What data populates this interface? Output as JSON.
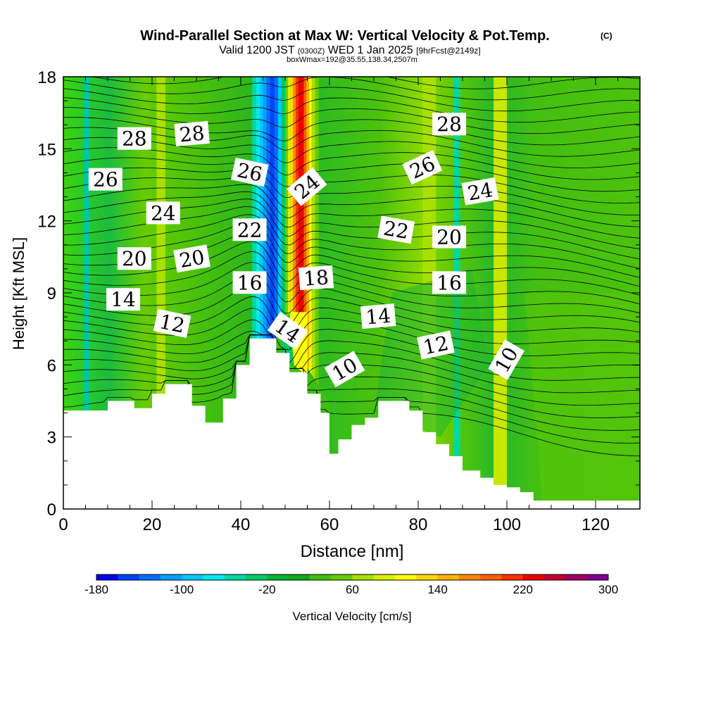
{
  "header": {
    "title": "Wind-Parallel Section at Max W: Vertical Velocity & Pot.Temp.",
    "title_mark": "(C)",
    "valid_prefix": "Valid 1200 JST",
    "valid_small": "(0300Z)",
    "valid_date": "WED 1 Jan 2025",
    "valid_suffix": "[9hrFcst@2149z]",
    "subline": "boxWmax=192@35.55,138.34,2507m"
  },
  "chart_data": {
    "type": "heatmap",
    "xlabel": "Distance [nm]",
    "ylabel": "Height [Kft MSL]",
    "xlim": [
      0,
      130
    ],
    "ylim": [
      0,
      18
    ],
    "x_ticks": [
      "0",
      "20",
      "40",
      "60",
      "80",
      "100",
      "120"
    ],
    "y_ticks": [
      "0",
      "3",
      "6",
      "9",
      "12",
      "15",
      "18"
    ],
    "colorbar": {
      "label": "Vertical Velocity [cm/s]",
      "tick_labels": [
        "-180",
        "-100",
        "-20",
        "60",
        "140",
        "220",
        "300"
      ],
      "range": [
        -180,
        300
      ],
      "step": 20,
      "colors": [
        "#0000f0",
        "#0040ff",
        "#0070ff",
        "#00a0ff",
        "#00c8ff",
        "#00e8f0",
        "#00d8a0",
        "#00c864",
        "#00b432",
        "#10aa18",
        "#40be10",
        "#66cc00",
        "#a8e000",
        "#d8f000",
        "#ffff00",
        "#ffd800",
        "#ffb000",
        "#ff8800",
        "#ff6000",
        "#ff3000",
        "#f00000",
        "#c00030",
        "#a00060",
        "#800090"
      ]
    },
    "terrain_profile_kft": [
      [
        0,
        4.1
      ],
      [
        10,
        4.1
      ],
      [
        10,
        4.5
      ],
      [
        16,
        4.5
      ],
      [
        16,
        4.2
      ],
      [
        20,
        4.2
      ],
      [
        20,
        4.8
      ],
      [
        23,
        4.8
      ],
      [
        23,
        5.2
      ],
      [
        29,
        5.2
      ],
      [
        29,
        4.3
      ],
      [
        32,
        4.3
      ],
      [
        32,
        3.6
      ],
      [
        36,
        3.6
      ],
      [
        36,
        4.6
      ],
      [
        39,
        4.6
      ],
      [
        39,
        6.0
      ],
      [
        42,
        6.0
      ],
      [
        42,
        7.1
      ],
      [
        48,
        7.1
      ],
      [
        48,
        6.5
      ],
      [
        51,
        6.5
      ],
      [
        51,
        5.7
      ],
      [
        55,
        5.7
      ],
      [
        55,
        4.8
      ],
      [
        58,
        4.8
      ],
      [
        58,
        4.0
      ],
      [
        60,
        4.0
      ],
      [
        60,
        2.3
      ],
      [
        62,
        2.3
      ],
      [
        62,
        2.9
      ],
      [
        65,
        2.9
      ],
      [
        65,
        3.5
      ],
      [
        68,
        3.5
      ],
      [
        68,
        3.8
      ],
      [
        71,
        3.8
      ],
      [
        71,
        4.5
      ],
      [
        78,
        4.5
      ],
      [
        78,
        4.1
      ],
      [
        81,
        4.1
      ],
      [
        81,
        3.2
      ],
      [
        84,
        3.2
      ],
      [
        84,
        2.7
      ],
      [
        87,
        2.7
      ],
      [
        87,
        2.2
      ],
      [
        90,
        2.2
      ],
      [
        90,
        1.6
      ],
      [
        94,
        1.6
      ],
      [
        94,
        1.3
      ],
      [
        97,
        1.3
      ],
      [
        97,
        1.0
      ],
      [
        100,
        1.0
      ],
      [
        100,
        0.9
      ],
      [
        103,
        0.9
      ],
      [
        103,
        0.7
      ],
      [
        106,
        0.7
      ],
      [
        106,
        0.35
      ],
      [
        130,
        0.35
      ]
    ],
    "updraft_max_cm_s": 192,
    "isentrope_labels": [
      {
        "text": "28",
        "x": 16,
        "y": 15.4,
        "angle": 0
      },
      {
        "text": "28",
        "x": 29,
        "y": 15.6,
        "angle": -5
      },
      {
        "text": "26",
        "x": 9.5,
        "y": 13.7,
        "angle": 0
      },
      {
        "text": "26",
        "x": 42,
        "y": 14.0,
        "angle": 12
      },
      {
        "text": "24",
        "x": 22.5,
        "y": 12.3,
        "angle": 0
      },
      {
        "text": "24",
        "x": 55,
        "y": 13.4,
        "angle": -40
      },
      {
        "text": "22",
        "x": 42,
        "y": 11.6,
        "angle": 0
      },
      {
        "text": "20",
        "x": 16,
        "y": 10.4,
        "angle": 0
      },
      {
        "text": "20",
        "x": 29,
        "y": 10.4,
        "angle": -10
      },
      {
        "text": "16",
        "x": 42,
        "y": 9.4,
        "angle": 0
      },
      {
        "text": "18",
        "x": 57,
        "y": 9.6,
        "angle": -4
      },
      {
        "text": "14",
        "x": 13.5,
        "y": 8.7,
        "angle": 0
      },
      {
        "text": "12",
        "x": 24.5,
        "y": 7.7,
        "angle": 12
      },
      {
        "text": "14",
        "x": 50.5,
        "y": 7.4,
        "angle": 35
      },
      {
        "text": "10",
        "x": 63.5,
        "y": 5.8,
        "angle": -30
      },
      {
        "text": "14",
        "x": 71,
        "y": 8.0,
        "angle": -5
      },
      {
        "text": "22",
        "x": 75,
        "y": 11.6,
        "angle": 10
      },
      {
        "text": "26",
        "x": 81,
        "y": 14.2,
        "angle": -25
      },
      {
        "text": "28",
        "x": 87,
        "y": 16.0,
        "angle": 0
      },
      {
        "text": "20",
        "x": 87,
        "y": 11.3,
        "angle": 0
      },
      {
        "text": "16",
        "x": 87,
        "y": 9.4,
        "angle": 0
      },
      {
        "text": "12",
        "x": 84,
        "y": 6.8,
        "angle": -12
      },
      {
        "text": "24",
        "x": 94,
        "y": 13.2,
        "angle": -10
      },
      {
        "text": "10",
        "x": 100,
        "y": 6.2,
        "angle": -60
      }
    ]
  }
}
